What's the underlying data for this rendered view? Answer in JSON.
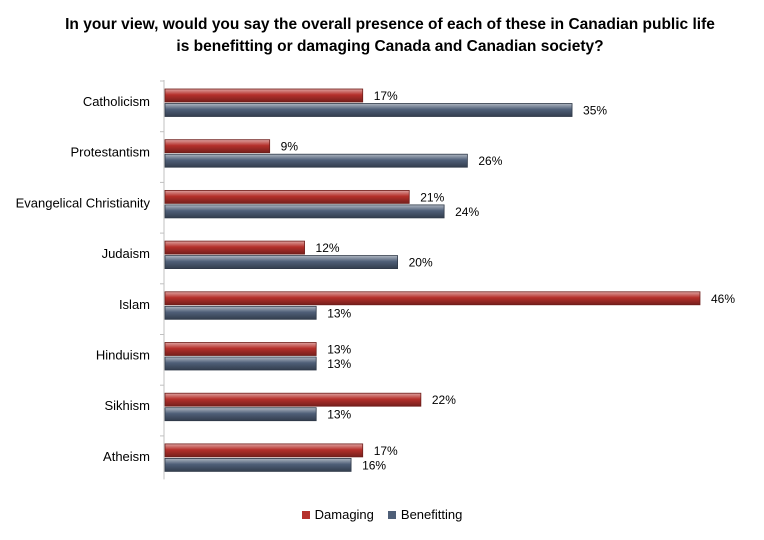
{
  "title": "In your view, would you say the overall presence of each of these in Canadian public life is benefitting  or damaging Canada and Canadian society?",
  "chart_data": {
    "type": "bar",
    "orientation": "horizontal",
    "categories": [
      "Catholicism",
      "Protestantism",
      "Evangelical Christianity",
      "Judaism",
      "Islam",
      "Hinduism",
      "Sikhism",
      "Atheism"
    ],
    "series": [
      {
        "name": "Damaging",
        "values": [
          17,
          9,
          21,
          12,
          46,
          13,
          22,
          17
        ],
        "color": "#b5302b"
      },
      {
        "name": "Benefitting",
        "values": [
          35,
          26,
          24,
          20,
          13,
          13,
          13,
          16
        ],
        "color": "#4f5f78"
      }
    ],
    "value_suffix": "%",
    "xlim": [
      0,
      50
    ],
    "legend_position": "bottom",
    "grid": false
  }
}
